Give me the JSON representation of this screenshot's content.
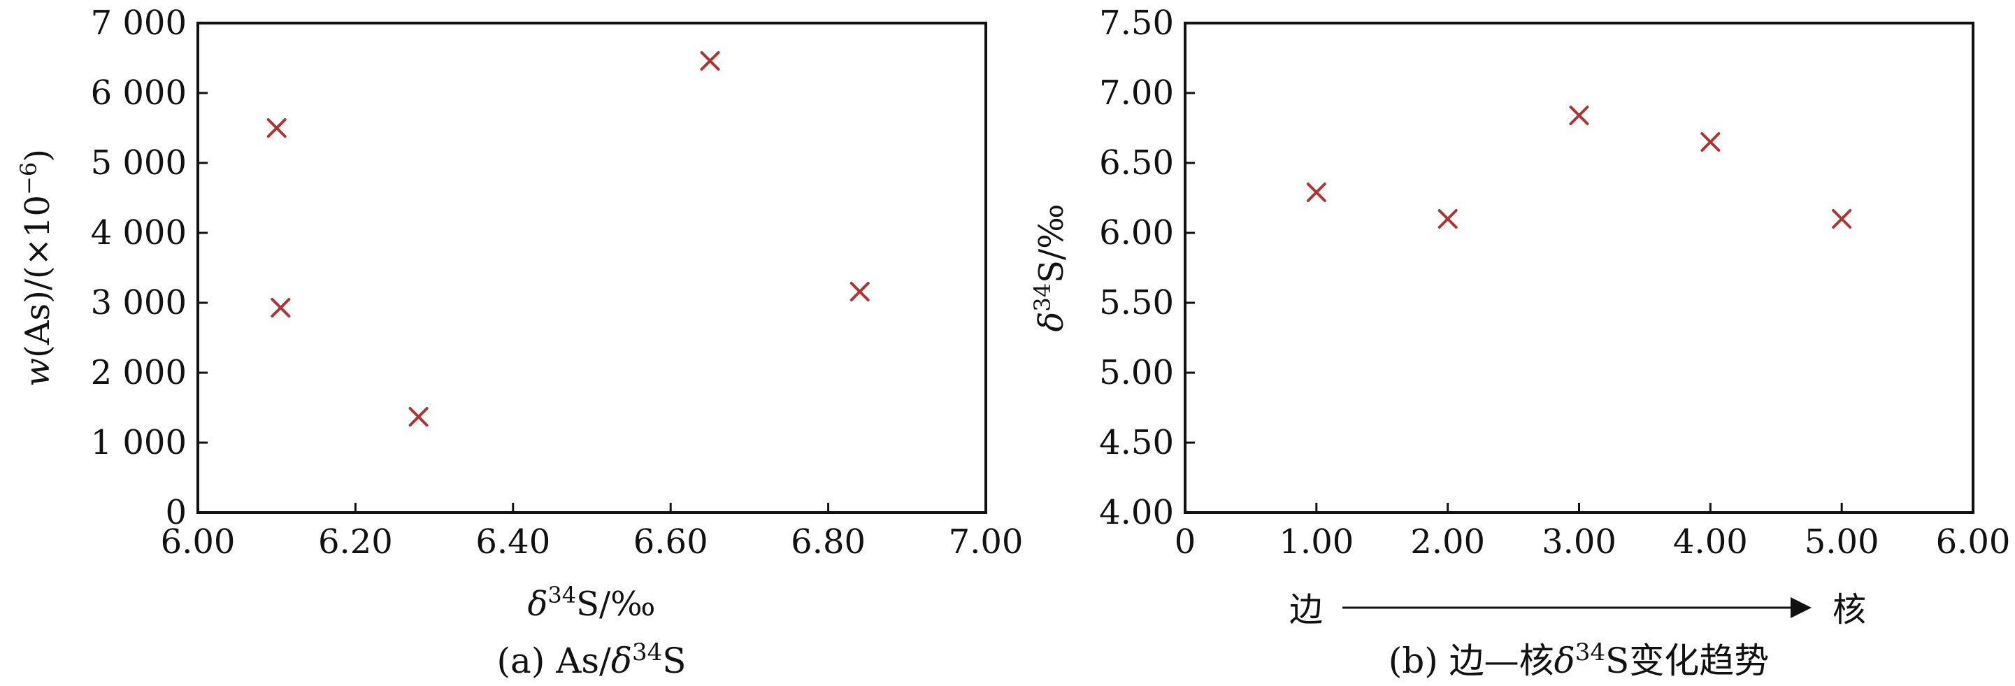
{
  "chart_data": [
    {
      "type": "scatter",
      "x": [
        6.1,
        6.105,
        6.28,
        6.65,
        6.84
      ],
      "y": [
        5500,
        2930,
        1370,
        6460,
        3160
      ],
      "xlim": [
        6.0,
        7.0
      ],
      "ylim": [
        0,
        7000
      ],
      "xticks": [
        "6.00",
        "6.20",
        "6.40",
        "6.60",
        "6.80",
        "7.00"
      ],
      "yticks": [
        "0",
        "1 000",
        "2 000",
        "3 000",
        "4 000",
        "5 000",
        "6 000",
        "7 000"
      ],
      "xlabel": "δ³⁴S/‰",
      "ylabel": "w(As)/(×10⁻⁶)",
      "caption": "(a) As/δ³⁴S",
      "marker_color": "#b03232",
      "marker": "x"
    },
    {
      "type": "scatter",
      "x": [
        1,
        2,
        3,
        4,
        5
      ],
      "y": [
        6.29,
        6.1,
        6.84,
        6.65,
        6.1
      ],
      "xlim": [
        0,
        6.0
      ],
      "ylim": [
        4.0,
        7.5
      ],
      "xticks": [
        "0",
        "1.00",
        "2.00",
        "3.00",
        "4.00",
        "5.00",
        "6.00"
      ],
      "yticks": [
        "4.00",
        "4.50",
        "5.00",
        "5.50",
        "6.00",
        "6.50",
        "7.00",
        "7.50"
      ],
      "ylabel": "δ³⁴S/‰",
      "arrow_left": "边",
      "arrow_right": "核",
      "caption": "(b) 边—核δ³⁴S变化趋势",
      "marker_color": "#b03232",
      "marker": "x"
    }
  ]
}
